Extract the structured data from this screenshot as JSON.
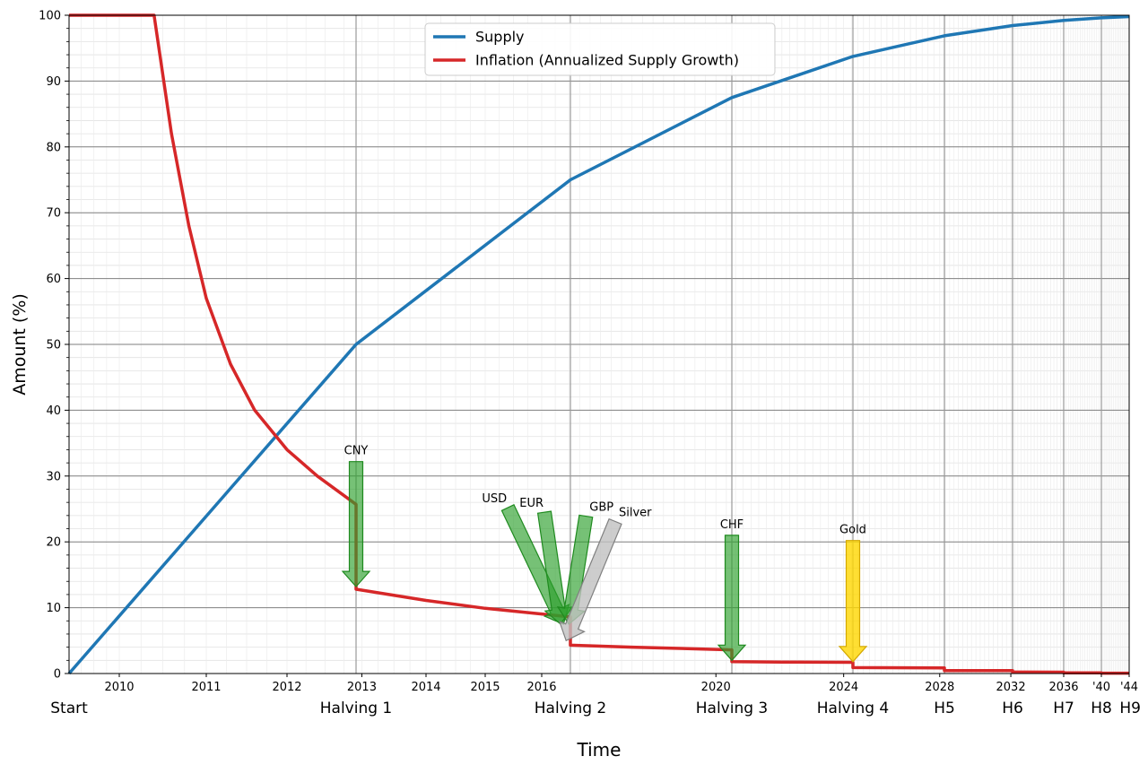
{
  "chart_data": {
    "type": "line",
    "title": "",
    "xlabel": "Time",
    "ylabel": "Amount (%)",
    "ylim": [
      0,
      100
    ],
    "grid": true,
    "legend_position": "top-center",
    "y_ticks": [
      "0",
      "10",
      "20",
      "30",
      "40",
      "50",
      "60",
      "70",
      "80",
      "90",
      "100"
    ],
    "year_ticks": [
      {
        "label": "2010",
        "year": 2010
      },
      {
        "label": "2011",
        "year": 2011
      },
      {
        "label": "2012",
        "year": 2012
      },
      {
        "label": "2013",
        "year": 2013
      },
      {
        "label": "2014",
        "year": 2014
      },
      {
        "label": "2015",
        "year": 2015
      },
      {
        "label": "2016",
        "year": 2016
      },
      {
        "label": "2020",
        "year": 2020
      },
      {
        "label": "2024",
        "year": 2024
      },
      {
        "label": "2028",
        "year": 2028
      },
      {
        "label": "2032",
        "year": 2032
      },
      {
        "label": "2036",
        "year": 2036
      },
      {
        "label": "'40",
        "year": 2040
      },
      {
        "label": "'44",
        "year": 2044
      }
    ],
    "event_ticks": [
      {
        "label": "Start",
        "date": 2009.01
      },
      {
        "label": "Halving 1",
        "date": 2012.91
      },
      {
        "label": "Halving 2",
        "date": 2016.53
      },
      {
        "label": "Halving 3",
        "date": 2020.38
      },
      {
        "label": "Halving 4",
        "date": 2024.3
      },
      {
        "label": "H5",
        "date": 2028.2
      },
      {
        "label": "H6",
        "date": 2032.1
      },
      {
        "label": "H7",
        "date": 2036.0
      },
      {
        "label": "H8",
        "date": 2040.0
      },
      {
        "label": "H9",
        "date": 2044.0
      }
    ],
    "series": [
      {
        "name": "Supply",
        "color": "#1f77b4",
        "points": [
          [
            2009.01,
            0
          ],
          [
            2012.91,
            50
          ],
          [
            2016.53,
            75
          ],
          [
            2020.38,
            87.5
          ],
          [
            2024.3,
            93.75
          ],
          [
            2028.2,
            96.875
          ],
          [
            2032.1,
            98.44
          ],
          [
            2036.0,
            99.22
          ],
          [
            2040.0,
            99.61
          ],
          [
            2044.0,
            99.8
          ]
        ]
      },
      {
        "name": "Inflation (Annualized Supply Growth)",
        "color": "#d62728",
        "points": [
          [
            2009.01,
            100
          ],
          [
            2010.4,
            100
          ],
          [
            2010.6,
            82
          ],
          [
            2010.8,
            68
          ],
          [
            2011.0,
            57
          ],
          [
            2011.3,
            47
          ],
          [
            2011.6,
            40
          ],
          [
            2012.0,
            34
          ],
          [
            2012.4,
            30
          ],
          [
            2012.91,
            25.7
          ],
          [
            2012.91,
            12.8
          ],
          [
            2014.0,
            11.1
          ],
          [
            2015.0,
            9.9
          ],
          [
            2016.53,
            8.6
          ],
          [
            2016.53,
            4.3
          ],
          [
            2018.0,
            4.0
          ],
          [
            2020.38,
            3.6
          ],
          [
            2020.38,
            1.8
          ],
          [
            2022.0,
            1.75
          ],
          [
            2024.3,
            1.7
          ],
          [
            2024.3,
            0.9
          ],
          [
            2028.2,
            0.85
          ],
          [
            2028.2,
            0.45
          ],
          [
            2032.1,
            0.43
          ],
          [
            2032.1,
            0.22
          ],
          [
            2036.0,
            0.21
          ],
          [
            2036.0,
            0.11
          ],
          [
            2040.0,
            0.11
          ],
          [
            2040.0,
            0.05
          ],
          [
            2044.0,
            0.05
          ]
        ]
      }
    ],
    "annotations": [
      {
        "label": "CNY",
        "tail": [
          2012.91,
          32.2
        ],
        "head": [
          2012.91,
          13.2
        ],
        "color": "#2ca02c"
      },
      {
        "label": "USD",
        "tail": [
          2015.4,
          25.2
        ],
        "head": [
          2016.4,
          7.5
        ],
        "color": "#2ca02c"
      },
      {
        "label": "EUR",
        "tail": [
          2016.05,
          24.5
        ],
        "head": [
          2016.35,
          7.5
        ],
        "color": "#2ca02c"
      },
      {
        "label": "GBP",
        "tail": [
          2016.9,
          23.9
        ],
        "head": [
          2016.5,
          7.5
        ],
        "color": "#2ca02c"
      },
      {
        "label": "Silver",
        "tail": [
          2017.6,
          23.1
        ],
        "head": [
          2016.45,
          5.0
        ],
        "color": "#c0c0c0"
      },
      {
        "label": "CHF",
        "tail": [
          2020.38,
          21.0
        ],
        "head": [
          2020.38,
          2.0
        ],
        "color": "#2ca02c"
      },
      {
        "label": "Gold",
        "tail": [
          2024.3,
          20.2
        ],
        "head": [
          2024.3,
          1.8
        ],
        "color": "#ffd700"
      }
    ]
  }
}
